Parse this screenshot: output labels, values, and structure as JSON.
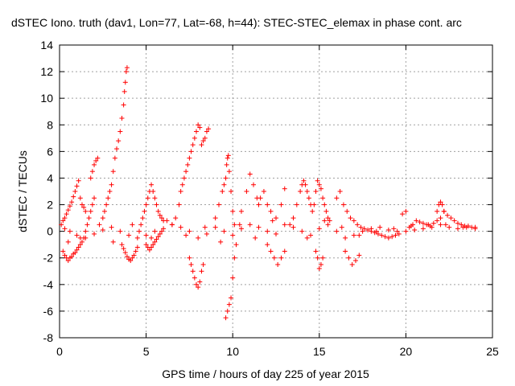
{
  "chart_data": {
    "type": "scatter",
    "title": "dSTEC Iono. truth (dav1, Lon=77, Lat=-68, h=44): STEC-STEC_elemax in phase cont. arc",
    "xlabel": "GPS time / hours of day 225 of year 2015",
    "ylabel": "dSTEC  / TECUs",
    "xlim": [
      0,
      25
    ],
    "ylim": [
      -8,
      14
    ],
    "xticks": [
      "0",
      "5",
      "10",
      "15",
      "20",
      "25"
    ],
    "yticks": [
      "-8",
      "-6",
      "-4",
      "-2",
      "0",
      "2",
      "4",
      "6",
      "8",
      "10",
      "12",
      "14"
    ],
    "grid": true,
    "marker": "+",
    "color": "#ff0000",
    "series": [
      {
        "x": [
          0.1,
          0.2,
          0.3,
          0.4,
          0.5,
          0.6,
          0.7,
          0.8,
          0.9,
          1.0,
          1.1,
          1.2,
          1.3,
          1.4,
          1.5,
          0.2,
          0.3,
          0.4,
          0.5,
          0.6,
          0.7,
          0.8,
          0.9,
          1.0,
          1.1,
          1.2,
          1.3,
          1.4,
          1.5,
          1.6,
          1.7,
          1.8,
          1.9,
          2.0,
          1.8,
          1.9,
          2.0,
          2.1,
          2.2,
          2.5,
          2.6,
          2.7,
          2.8,
          2.9,
          3.0,
          3.1,
          3.2,
          3.3,
          3.4,
          3.5,
          3.6,
          3.7,
          3.75,
          3.8,
          3.85,
          3.9,
          3.6,
          3.7,
          3.8,
          3.9,
          4.0,
          4.1,
          4.2,
          4.3,
          4.4,
          4.5,
          4.6,
          4.7,
          4.8,
          4.9,
          5.0,
          5.1,
          5.2,
          5.3,
          5.4,
          5.5,
          5.6,
          5.7,
          5.8,
          5.9,
          6.0,
          5.0,
          5.1,
          5.2,
          5.3,
          5.4,
          5.5,
          5.6,
          5.7,
          5.8,
          5.9,
          6.5,
          6.7,
          6.9,
          7.0,
          7.1,
          7.2,
          7.3,
          7.4,
          7.5,
          7.6,
          7.7,
          7.8,
          7.9,
          8.0,
          8.1,
          8.2,
          8.3,
          8.4,
          8.5,
          8.6,
          7.5,
          7.6,
          7.7,
          7.8,
          7.9,
          8.0,
          8.1,
          8.2,
          8.3,
          9.0,
          9.2,
          9.4,
          9.5,
          9.6,
          9.65,
          9.7,
          9.75,
          9.8,
          9.9,
          10.0,
          10.1,
          9.6,
          9.7,
          9.8,
          9.9,
          10.0,
          10.1,
          10.2,
          10.5,
          10.8,
          11.0,
          11.2,
          11.4,
          11.5,
          11.6,
          11.8,
          12.0,
          12.2,
          12.5,
          12.8,
          13.0,
          12.0,
          12.2,
          12.4,
          12.6,
          12.8,
          13.0,
          13.5,
          13.7,
          13.9,
          14.0,
          14.1,
          14.2,
          14.3,
          14.4,
          14.5,
          14.6,
          14.7,
          14.8,
          14.9,
          15.0,
          15.1,
          15.2,
          15.3,
          15.4,
          15.5,
          15.6,
          14.8,
          14.9,
          15.0,
          15.1,
          15.2,
          16.0,
          16.2,
          16.4,
          16.6,
          16.8,
          17.0,
          17.2,
          17.4,
          17.6,
          17.8,
          18.0,
          18.2,
          18.4,
          18.6,
          18.8,
          19.0,
          19.2,
          19.4,
          19.6,
          19.8,
          20.0,
          16.5,
          16.7,
          16.9,
          17.1,
          17.3,
          20.2,
          20.4,
          20.6,
          20.8,
          21.0,
          21.2,
          21.4,
          21.6,
          21.8,
          22.0,
          22.2,
          22.4,
          22.6,
          22.8,
          23.0,
          23.2,
          23.4,
          23.6,
          23.8,
          24.0,
          21.8,
          21.9,
          22.0,
          22.1,
          22.2,
          0.3,
          0.6,
          1.0,
          1.5,
          2.0,
          2.5,
          3.0,
          3.5,
          4.0,
          4.5,
          5.0,
          5.5,
          6.0,
          6.5,
          7.0,
          7.5,
          8.0,
          8.5,
          9.0,
          9.5,
          10.0,
          10.5,
          11.0,
          11.5,
          12.0,
          12.5,
          13.0,
          13.5,
          14.0,
          14.5,
          15.0,
          15.5,
          16.0,
          16.5,
          17.0,
          17.5,
          18.0,
          18.5,
          19.0,
          19.5,
          20.0,
          20.5,
          21.0,
          21.5,
          22.0,
          22.5,
          23.0,
          23.5,
          24.0,
          0.5,
          1.2,
          2.3,
          3.1,
          4.2,
          5.3,
          6.2,
          7.3,
          8.4,
          9.3,
          10.4,
          11.3,
          12.3,
          13.3,
          14.3,
          15.3,
          16.3,
          17.3,
          18.3,
          19.3,
          20.3,
          21.3,
          22.3,
          23.3
        ],
        "y": [
          0.5,
          0.8,
          1.0,
          1.3,
          1.6,
          1.9,
          2.2,
          2.6,
          3.0,
          3.4,
          3.8,
          2.5,
          2.0,
          1.8,
          1.5,
          -1.5,
          -1.8,
          -2.0,
          -2.2,
          -2.0,
          -1.9,
          -1.7,
          -1.6,
          -1.4,
          -1.2,
          -1.0,
          -0.8,
          -0.5,
          0.0,
          0.5,
          1.0,
          1.5,
          2.0,
          2.5,
          4.0,
          4.5,
          5.0,
          5.3,
          5.5,
          1.0,
          1.5,
          2.0,
          2.5,
          3.0,
          3.5,
          4.5,
          5.5,
          6.2,
          6.8,
          7.5,
          8.5,
          9.5,
          10.5,
          11.2,
          12.0,
          12.3,
          -1.0,
          -1.3,
          -1.6,
          -1.9,
          -2.1,
          -2.2,
          -2.0,
          -1.8,
          -1.5,
          -1.2,
          0.0,
          0.5,
          1.0,
          1.5,
          2.0,
          2.5,
          3.0,
          3.5,
          3.0,
          2.5,
          2.0,
          1.5,
          1.2,
          1.0,
          0.8,
          -1.0,
          -1.2,
          -1.4,
          -1.2,
          -1.0,
          -0.8,
          -0.6,
          -0.4,
          -0.2,
          0.0,
          0.5,
          1.0,
          2.0,
          3.0,
          3.5,
          4.0,
          4.5,
          5.0,
          5.5,
          6.0,
          6.5,
          7.0,
          7.5,
          8.0,
          7.8,
          6.5,
          6.8,
          7.0,
          7.5,
          7.7,
          -2.0,
          -2.5,
          -3.0,
          -3.5,
          -4.0,
          -4.2,
          -3.8,
          -3.0,
          -2.5,
          1.0,
          2.0,
          3.0,
          3.5,
          4.0,
          5.0,
          5.5,
          5.7,
          4.5,
          3.0,
          1.5,
          0.5,
          -6.5,
          -6.0,
          -5.5,
          -5.0,
          -3.5,
          -2.0,
          -1.0,
          1.5,
          3.0,
          4.3,
          3.5,
          2.5,
          2.0,
          2.5,
          3.0,
          2.0,
          1.5,
          1.0,
          2.0,
          3.2,
          -1.0,
          -1.5,
          -2.0,
          -2.5,
          -2.0,
          -1.5,
          1.0,
          2.0,
          3.0,
          3.5,
          3.8,
          3.5,
          3.0,
          2.5,
          2.0,
          1.5,
          2.0,
          3.0,
          3.8,
          3.5,
          3.2,
          2.5,
          2.0,
          1.5,
          1.0,
          0.8,
          -1.5,
          -2.0,
          -2.8,
          -2.5,
          -2.0,
          2.5,
          3.0,
          2.0,
          1.5,
          1.0,
          0.8,
          0.5,
          0.3,
          0.2,
          0.1,
          0.0,
          -0.1,
          -0.2,
          -0.3,
          -0.4,
          -0.5,
          -0.4,
          -0.3,
          -0.2,
          1.3,
          1.5,
          -1.5,
          -2.0,
          -2.5,
          -2.2,
          -1.8,
          0.3,
          0.5,
          0.8,
          0.7,
          0.6,
          0.5,
          0.4,
          0.6,
          0.8,
          1.0,
          1.5,
          1.2,
          1.0,
          0.8,
          0.6,
          0.5,
          0.4,
          0.4,
          0.3,
          0.3,
          1.5,
          2.0,
          2.2,
          2.0,
          1.5,
          0.2,
          0.0,
          -0.3,
          -0.5,
          -0.2,
          0.1,
          0.3,
          0.0,
          -0.3,
          -0.5,
          -0.3,
          0.0,
          0.2,
          0.5,
          0.3,
          0.0,
          -0.5,
          -0.2,
          0.3,
          0.0,
          -0.3,
          0.2,
          0.5,
          0.3,
          0.0,
          -0.2,
          0.5,
          0.3,
          0.0,
          -0.3,
          0.2,
          0.5,
          0.0,
          -0.5,
          -0.3,
          0.0,
          0.2,
          0.3,
          0.1,
          0.0,
          0.0,
          0.1,
          0.2,
          0.3,
          0.5,
          0.3,
          0.2,
          0.3,
          0.2,
          -0.8,
          -0.5,
          0.5,
          -0.8,
          0.5,
          -0.5,
          0.8,
          -0.3,
          0.3,
          -0.8,
          0.5,
          -0.5,
          0.8,
          0.5,
          -0.5,
          0.8,
          0.3,
          -0.3,
          0.0,
          0.2,
          0.4,
          0.5,
          0.5,
          0.3
        ]
      }
    ]
  }
}
